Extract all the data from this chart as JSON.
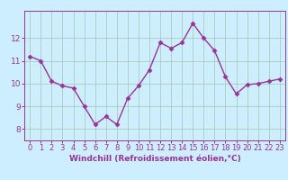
{
  "x": [
    0,
    1,
    2,
    3,
    4,
    5,
    6,
    7,
    8,
    9,
    10,
    11,
    12,
    13,
    14,
    15,
    16,
    17,
    18,
    19,
    20,
    21,
    22,
    23
  ],
  "y": [
    11.2,
    11.0,
    10.1,
    9.9,
    9.8,
    9.0,
    8.2,
    8.55,
    8.2,
    9.35,
    9.9,
    10.6,
    11.8,
    11.55,
    11.8,
    12.65,
    12.0,
    11.45,
    10.3,
    9.55,
    9.95,
    10.0,
    10.1,
    10.2
  ],
  "line_color": "#993399",
  "marker": "D",
  "markersize": 2.5,
  "linewidth": 1.0,
  "xlabel": "Windchill (Refroidissement éolien,°C)",
  "ylim": [
    7.5,
    13.2
  ],
  "xlim": [
    -0.5,
    23.5
  ],
  "yticks": [
    8,
    9,
    10,
    11,
    12
  ],
  "xticks": [
    0,
    1,
    2,
    3,
    4,
    5,
    6,
    7,
    8,
    9,
    10,
    11,
    12,
    13,
    14,
    15,
    16,
    17,
    18,
    19,
    20,
    21,
    22,
    23
  ],
  "bg_color": "#cceeff",
  "grid_color": "#aaccbb",
  "label_color": "#993399",
  "tick_color": "#993399",
  "xlabel_fontsize": 6.5,
  "tick_fontsize": 6.0
}
